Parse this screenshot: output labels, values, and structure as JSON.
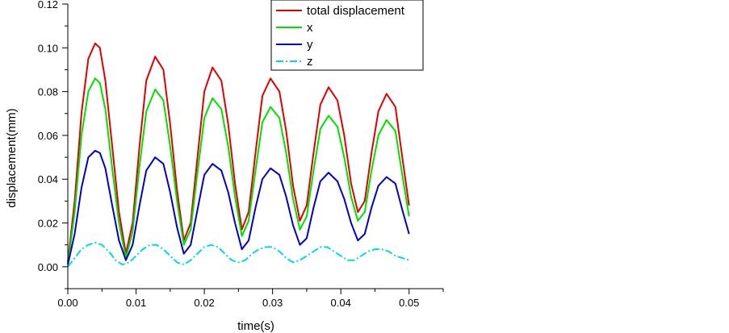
{
  "chart_data": {
    "type": "line",
    "title": "",
    "xlabel": "time(s)",
    "ylabel": "displacement(mm)",
    "xlim": [
      0,
      0.055
    ],
    "ylim": [
      -0.01,
      0.12
    ],
    "x_ticks": [
      0.0,
      0.01,
      0.02,
      0.03,
      0.04,
      0.05
    ],
    "x_tick_labels": [
      "0.00",
      "0.01",
      "0.02",
      "0.03",
      "0.04",
      "0.05"
    ],
    "y_ticks": [
      0.0,
      0.02,
      0.04,
      0.06,
      0.08,
      0.1,
      0.12
    ],
    "y_tick_labels": [
      "0.00",
      "0.02",
      "0.04",
      "0.06",
      "0.08",
      "0.10",
      "0.12"
    ],
    "grid": false,
    "legend_position": "top-right",
    "series": [
      {
        "name": "total displacement",
        "color": "#e00000",
        "dash": "solid",
        "x": [
          0.0,
          0.001,
          0.002,
          0.003,
          0.004,
          0.0047,
          0.0055,
          0.0065,
          0.0075,
          0.0085,
          0.0095,
          0.0105,
          0.0115,
          0.0128,
          0.014,
          0.015,
          0.016,
          0.017,
          0.018,
          0.019,
          0.02,
          0.0212,
          0.0225,
          0.0235,
          0.0245,
          0.0255,
          0.0265,
          0.0275,
          0.0285,
          0.0297,
          0.031,
          0.032,
          0.033,
          0.034,
          0.035,
          0.036,
          0.037,
          0.0382,
          0.0395,
          0.0405,
          0.0415,
          0.0425,
          0.0435,
          0.0445,
          0.0455,
          0.0467,
          0.048,
          0.049,
          0.05
        ],
        "y": [
          0.002,
          0.03,
          0.07,
          0.095,
          0.102,
          0.1,
          0.085,
          0.055,
          0.025,
          0.006,
          0.02,
          0.055,
          0.085,
          0.096,
          0.09,
          0.065,
          0.035,
          0.012,
          0.02,
          0.05,
          0.08,
          0.091,
          0.085,
          0.065,
          0.038,
          0.017,
          0.025,
          0.052,
          0.078,
          0.086,
          0.08,
          0.062,
          0.037,
          0.021,
          0.028,
          0.052,
          0.074,
          0.082,
          0.076,
          0.06,
          0.038,
          0.025,
          0.03,
          0.052,
          0.071,
          0.079,
          0.073,
          0.05,
          0.028
        ]
      },
      {
        "name": "x",
        "color": "#00e000",
        "dash": "solid",
        "x": [
          0.0,
          0.001,
          0.002,
          0.003,
          0.004,
          0.0047,
          0.0055,
          0.0065,
          0.0075,
          0.0085,
          0.0095,
          0.0105,
          0.0115,
          0.0128,
          0.014,
          0.015,
          0.016,
          0.017,
          0.018,
          0.019,
          0.02,
          0.0212,
          0.0225,
          0.0235,
          0.0245,
          0.0255,
          0.0265,
          0.0275,
          0.0285,
          0.0297,
          0.031,
          0.032,
          0.033,
          0.034,
          0.035,
          0.036,
          0.037,
          0.0382,
          0.0395,
          0.0405,
          0.0415,
          0.0425,
          0.0435,
          0.0445,
          0.0455,
          0.0467,
          0.048,
          0.049,
          0.05
        ],
        "y": [
          0.001,
          0.025,
          0.06,
          0.08,
          0.086,
          0.084,
          0.072,
          0.045,
          0.02,
          0.004,
          0.016,
          0.046,
          0.071,
          0.081,
          0.076,
          0.055,
          0.03,
          0.01,
          0.017,
          0.043,
          0.068,
          0.077,
          0.072,
          0.055,
          0.032,
          0.014,
          0.021,
          0.044,
          0.066,
          0.073,
          0.068,
          0.052,
          0.031,
          0.017,
          0.023,
          0.044,
          0.063,
          0.069,
          0.064,
          0.05,
          0.032,
          0.021,
          0.025,
          0.044,
          0.06,
          0.067,
          0.062,
          0.042,
          0.023
        ]
      },
      {
        "name": "y",
        "color": "#0000cc",
        "dash": "solid",
        "x": [
          0.0,
          0.001,
          0.002,
          0.003,
          0.004,
          0.0047,
          0.0055,
          0.0065,
          0.0075,
          0.0085,
          0.0095,
          0.0105,
          0.0115,
          0.0128,
          0.014,
          0.015,
          0.016,
          0.017,
          0.018,
          0.019,
          0.02,
          0.0212,
          0.0225,
          0.0235,
          0.0245,
          0.0255,
          0.0265,
          0.0275,
          0.0285,
          0.0297,
          0.031,
          0.032,
          0.033,
          0.034,
          0.035,
          0.036,
          0.037,
          0.0382,
          0.0395,
          0.0405,
          0.0415,
          0.0425,
          0.0435,
          0.0445,
          0.0455,
          0.0467,
          0.048,
          0.049,
          0.05
        ],
        "y": [
          0.001,
          0.015,
          0.036,
          0.05,
          0.053,
          0.052,
          0.045,
          0.028,
          0.012,
          0.003,
          0.01,
          0.028,
          0.044,
          0.05,
          0.047,
          0.034,
          0.018,
          0.006,
          0.01,
          0.026,
          0.042,
          0.047,
          0.044,
          0.034,
          0.02,
          0.008,
          0.012,
          0.027,
          0.04,
          0.045,
          0.042,
          0.032,
          0.019,
          0.01,
          0.013,
          0.027,
          0.039,
          0.043,
          0.039,
          0.031,
          0.02,
          0.012,
          0.015,
          0.027,
          0.037,
          0.041,
          0.038,
          0.026,
          0.015
        ]
      },
      {
        "name": "z",
        "color": "#00d8e0",
        "dash": "dashdot",
        "x": [
          0.0,
          0.001,
          0.002,
          0.003,
          0.004,
          0.005,
          0.006,
          0.007,
          0.008,
          0.009,
          0.01,
          0.011,
          0.012,
          0.013,
          0.014,
          0.015,
          0.016,
          0.017,
          0.018,
          0.019,
          0.02,
          0.021,
          0.022,
          0.023,
          0.024,
          0.025,
          0.026,
          0.027,
          0.028,
          0.029,
          0.03,
          0.031,
          0.032,
          0.033,
          0.034,
          0.035,
          0.036,
          0.037,
          0.038,
          0.039,
          0.04,
          0.041,
          0.042,
          0.043,
          0.044,
          0.045,
          0.046,
          0.047,
          0.048,
          0.049,
          0.05
        ],
        "y": [
          0.0,
          0.004,
          0.008,
          0.01,
          0.011,
          0.01,
          0.007,
          0.003,
          0.001,
          0.002,
          0.005,
          0.008,
          0.01,
          0.01,
          0.008,
          0.005,
          0.002,
          0.001,
          0.003,
          0.006,
          0.009,
          0.01,
          0.009,
          0.006,
          0.003,
          0.002,
          0.003,
          0.006,
          0.008,
          0.009,
          0.009,
          0.007,
          0.004,
          0.002,
          0.003,
          0.005,
          0.007,
          0.009,
          0.009,
          0.007,
          0.005,
          0.003,
          0.003,
          0.005,
          0.007,
          0.008,
          0.008,
          0.007,
          0.005,
          0.004,
          0.003
        ]
      }
    ]
  }
}
